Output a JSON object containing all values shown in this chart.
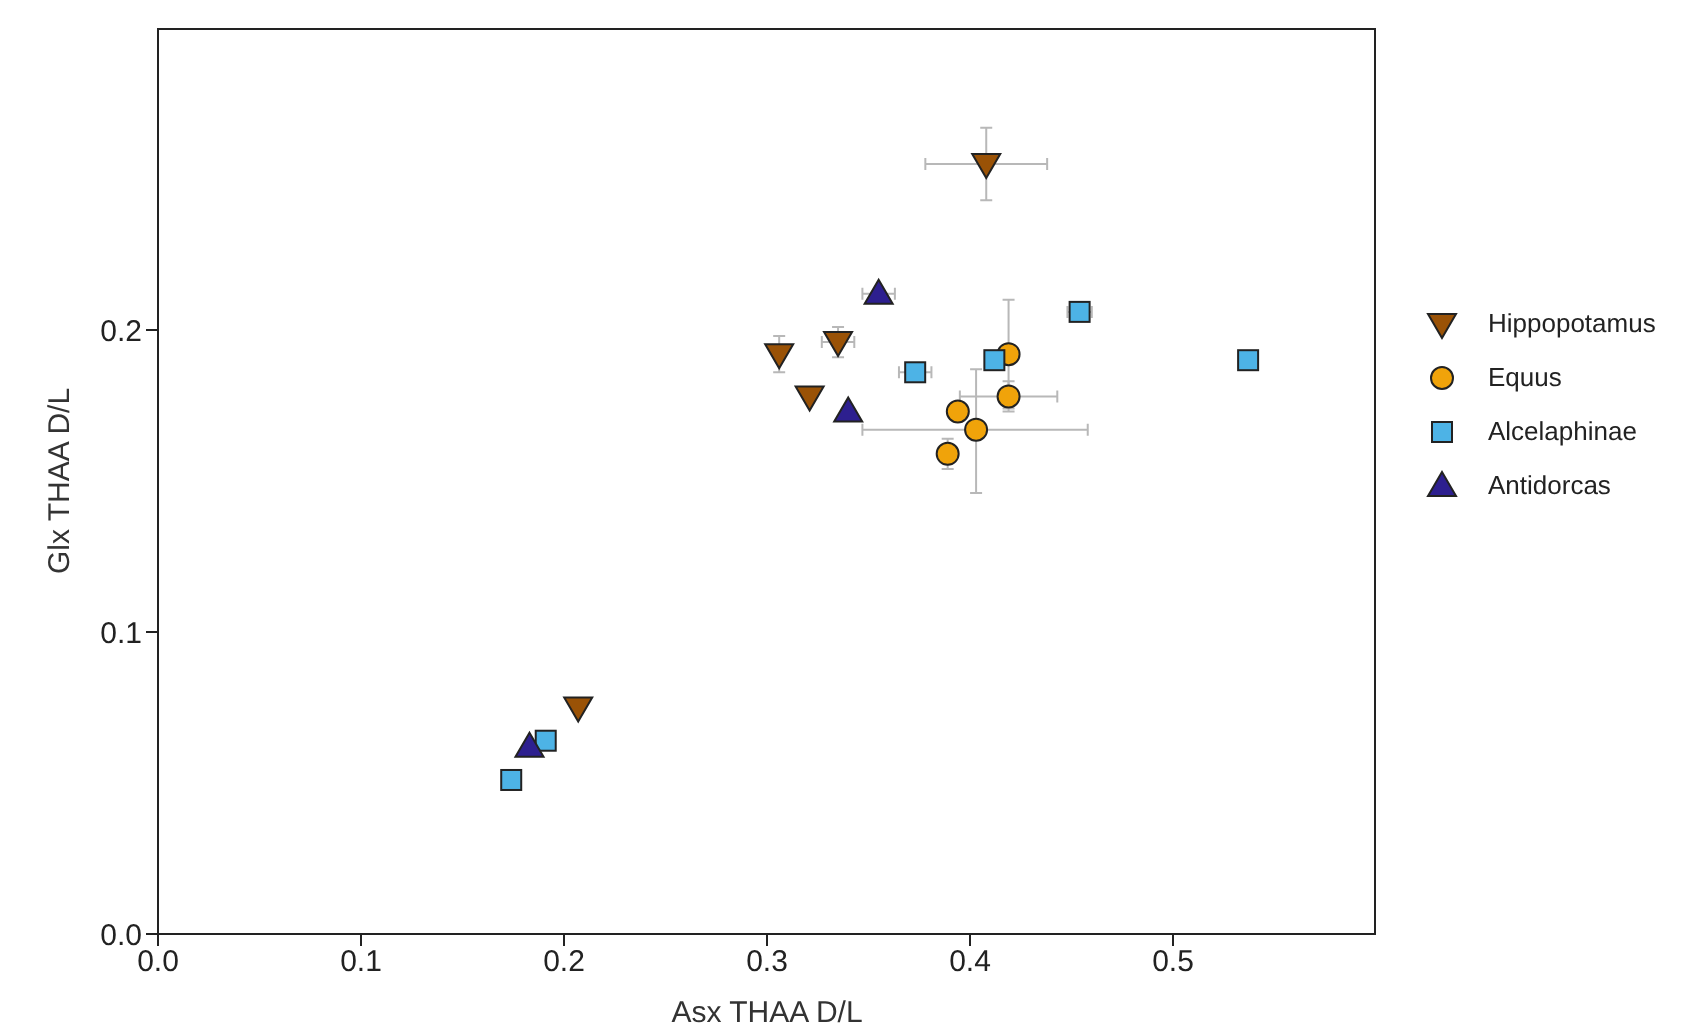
{
  "chart_data": {
    "type": "scatter",
    "xlabel": "Asx  THAA D/L",
    "ylabel": "Glx  THAA D/L",
    "xlim": [
      0,
      0.6
    ],
    "ylim": [
      0,
      0.3
    ],
    "xticks": [
      {
        "value": 0,
        "label": "0.0"
      },
      {
        "value": 0.1,
        "label": "0.1"
      },
      {
        "value": 0.2,
        "label": "0.2"
      },
      {
        "value": 0.3,
        "label": "0.3"
      },
      {
        "value": 0.4,
        "label": "0.4"
      },
      {
        "value": 0.5,
        "label": "0.5"
      }
    ],
    "yticks": [
      {
        "value": 0,
        "label": "0.0"
      },
      {
        "value": 0.1,
        "label": "0.1"
      },
      {
        "value": 0.2,
        "label": "0.2"
      }
    ],
    "legend": "right",
    "grid": false,
    "series": [
      {
        "name": "Hippopotamus",
        "color": "#9a5206",
        "marker": "triangle-down",
        "x": [
          0.408,
          0.306,
          0.335,
          0.321,
          0.207
        ],
        "values": [
          0.255,
          0.192,
          0.196,
          0.178,
          0.075
        ],
        "errors": [
          0.012,
          0.006,
          0.005,
          null,
          null
        ],
        "xerrors": [
          0.03,
          null,
          0.008,
          null,
          null
        ]
      },
      {
        "name": "Equus",
        "color": "#f0a30a",
        "marker": "circle",
        "x": [
          0.419,
          0.419,
          0.394,
          0.403,
          0.389
        ],
        "values": [
          0.192,
          0.178,
          0.173,
          0.167,
          0.159
        ],
        "errors": [
          0.018,
          0.005,
          null,
          [
            0.146,
            0.187
          ],
          0.005
        ],
        "xerrors": [
          null,
          [
            0.395,
            0.443
          ],
          null,
          [
            0.347,
            0.458
          ],
          null
        ]
      },
      {
        "name": "Alcelaphinae",
        "color": "#4db3e6",
        "marker": "square",
        "x": [
          0.373,
          0.454,
          0.412,
          0.537,
          0.191,
          0.174
        ],
        "values": [
          0.186,
          0.206,
          0.19,
          0.19,
          0.064,
          0.051
        ],
        "errors": [
          null,
          null,
          null,
          null,
          null,
          null
        ],
        "xerrors": [
          0.008,
          0.006,
          null,
          null,
          null,
          null
        ]
      },
      {
        "name": "Antidorcas",
        "color": "#2d1f8f",
        "marker": "triangle",
        "x": [
          0.355,
          0.34,
          0.183
        ],
        "values": [
          0.212,
          0.173,
          0.062
        ],
        "errors": [
          null,
          null,
          null
        ],
        "xerrors": [
          0.008,
          null,
          null
        ]
      }
    ]
  }
}
